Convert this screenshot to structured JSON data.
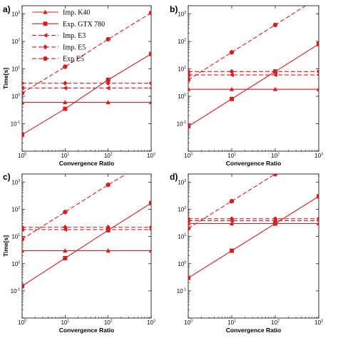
{
  "chart_data": [
    {
      "type": "line",
      "panel_label": "a)",
      "xlabel": "Convergence Ratio",
      "ylabel": "Time[s]",
      "xscale": "log",
      "yscale": "log",
      "xlim": [
        1,
        1000
      ],
      "ylim": [
        0.01,
        2000
      ],
      "xticks": [
        1,
        10,
        100,
        1000
      ],
      "yticks": [
        0.1,
        1,
        10,
        100,
        1000
      ],
      "legend": "top-left",
      "series": [
        {
          "name": "Imp. K40",
          "x": [
            1,
            10,
            100,
            1000
          ],
          "y": [
            0.6,
            0.6,
            0.6,
            0.6
          ]
        },
        {
          "name": "Exp. GTX 780",
          "x": [
            1,
            10,
            100,
            1000
          ],
          "y": [
            0.04,
            0.35,
            4.0,
            35
          ]
        },
        {
          "name": "Imp. E3",
          "x": [
            1,
            10,
            100,
            1000
          ],
          "y": [
            2.0,
            2.0,
            2.0,
            2.0
          ]
        },
        {
          "name": "Imp. E5",
          "x": [
            1,
            10,
            100,
            1000
          ],
          "y": [
            3.0,
            3.0,
            3.0,
            3.0
          ]
        },
        {
          "name": "Exp E5",
          "x": [
            1,
            10,
            100,
            1000
          ],
          "y": [
            1.3,
            12,
            120,
            1100
          ]
        }
      ]
    },
    {
      "type": "line",
      "panel_label": "b)",
      "xlabel": "Convergence Ratio",
      "ylabel": "",
      "xscale": "log",
      "yscale": "log",
      "xlim": [
        1,
        1000
      ],
      "ylim": [
        0.01,
        2000
      ],
      "xticks": [
        1,
        10,
        100,
        1000
      ],
      "yticks": [
        0.1,
        1,
        10,
        100,
        1000
      ],
      "series": [
        {
          "x": [
            1,
            10,
            100,
            1000
          ],
          "y": [
            1.8,
            1.8,
            1.8,
            1.8
          ]
        },
        {
          "x": [
            1,
            10,
            100,
            1000
          ],
          "y": [
            0.08,
            0.8,
            8,
            80
          ]
        },
        {
          "x": [
            1,
            10,
            100,
            1000
          ],
          "y": [
            6,
            6,
            6,
            6
          ]
        },
        {
          "x": [
            1,
            10,
            100,
            1000
          ],
          "y": [
            8,
            8,
            8,
            8
          ]
        },
        {
          "x": [
            1,
            10,
            100,
            1000
          ],
          "y": [
            4,
            40,
            400,
            4000
          ]
        }
      ]
    },
    {
      "type": "line",
      "panel_label": "c)",
      "xlabel": "Convergence Ratio",
      "ylabel": "Time[s]",
      "xscale": "log",
      "yscale": "log",
      "xlim": [
        1,
        1000
      ],
      "ylim": [
        0.01,
        2000
      ],
      "xticks": [
        1,
        10,
        100,
        1000
      ],
      "yticks": [
        0.1,
        1,
        10,
        100,
        1000
      ],
      "series": [
        {
          "x": [
            1,
            10,
            100,
            1000
          ],
          "y": [
            3,
            3,
            3,
            3
          ]
        },
        {
          "x": [
            1,
            10,
            100,
            1000
          ],
          "y": [
            0.15,
            1.6,
            17,
            170
          ]
        },
        {
          "x": [
            1,
            10,
            100,
            1000
          ],
          "y": [
            18,
            18,
            18,
            18
          ]
        },
        {
          "x": [
            1,
            10,
            100,
            1000
          ],
          "y": [
            22,
            22,
            22,
            22
          ]
        },
        {
          "x": [
            1,
            10,
            100,
            1000
          ],
          "y": [
            8,
            80,
            800,
            7000
          ]
        }
      ]
    },
    {
      "type": "line",
      "panel_label": "d)",
      "xlabel": "Convergence Ratio",
      "ylabel": "",
      "xscale": "log",
      "yscale": "log",
      "xlim": [
        1,
        1000
      ],
      "ylim": [
        0.01,
        2000
      ],
      "xticks": [
        1,
        10,
        100,
        1000
      ],
      "yticks": [
        0.1,
        1,
        10,
        100,
        1000
      ],
      "series": [
        {
          "x": [
            1,
            10,
            100,
            1000
          ],
          "y": [
            30,
            30,
            30,
            30
          ]
        },
        {
          "x": [
            1,
            10,
            100,
            1000
          ],
          "y": [
            0.3,
            3,
            30,
            300
          ]
        },
        {
          "x": [
            1,
            10,
            100,
            1000
          ],
          "y": [
            38,
            38,
            38,
            38
          ]
        },
        {
          "x": [
            1,
            10,
            100,
            1000
          ],
          "y": [
            45,
            45,
            45,
            45
          ]
        },
        {
          "x": [
            1,
            10,
            100,
            1000
          ],
          "y": [
            20,
            200,
            2000,
            18000
          ]
        }
      ]
    }
  ],
  "styles": {
    "color": "#d42020",
    "dashes": [
      "",
      "",
      "6,3",
      "6,3",
      "6,3"
    ],
    "markers": [
      "triangle",
      "square",
      "triangle-left",
      "diamond",
      "circle"
    ]
  }
}
